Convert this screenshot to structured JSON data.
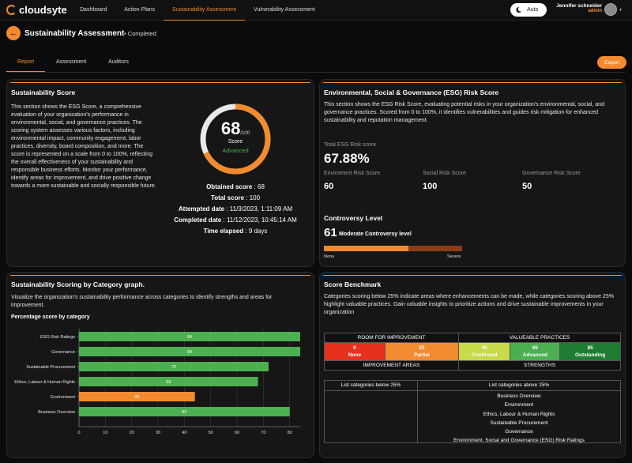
{
  "app": {
    "brand": "cloudsyte"
  },
  "nav": {
    "links": [
      "Dashboard",
      "Action Plans",
      "Sustainability Assessment",
      "Vulnerability Assessment"
    ],
    "active": 2
  },
  "toggle": {
    "label": "Auto"
  },
  "user": {
    "name": "Jennifer schneider",
    "role": "admin"
  },
  "page": {
    "title": "Sustainability Assessment",
    "status": "• Completed"
  },
  "tabs": [
    "Report",
    "Assessment",
    "Auditors"
  ],
  "export_label": "Export",
  "score_card": {
    "title": "Sustainability Score",
    "description": "This section shows the ESG Score, a comprehensive evaluation of your organization's performance in environmental, social, and governance practices. The scoring system assesses various factors, including environmental impact, community engagement, labor practices, diversity, board composition, and more. The score is represented on a scale from 0 to 100%, reflecting the overall effectiveness of your sustainability and responsible business efforts. Monitor your performance, identify areas for improvement, and drive positive change towards a more sustainable and socially responsible future.",
    "gauge": {
      "value": "68",
      "denominator": "/100",
      "label": "Score",
      "level": "Advanced",
      "fraction": 0.68
    },
    "details": [
      {
        "label": "Obtained score",
        "value": "68"
      },
      {
        "label": "Total score",
        "value": "100"
      },
      {
        "label": "Attempted date",
        "value": "11/3/2023, 1:11:09 AM"
      },
      {
        "label": "Completed date",
        "value": "11/12/2023, 10:45:14 AM"
      },
      {
        "label": "Time elapsed",
        "value": "9 days"
      }
    ]
  },
  "esg_card": {
    "title": "Environmental, Social & Governance (ESG) Risk Score",
    "description": "This section shows the ESG Risk Score, evaluating potential risks in your organization's environmental, social, and governance practices. Scored from 0 to 100%, it identifies vulnerabilities and guides risk mitigation for enhanced sustainability and reputation management.",
    "total_label": "Total ESG Risk score",
    "total_value": "67.88%",
    "risks": [
      {
        "label": "Enviroment Risk Score",
        "value": "60"
      },
      {
        "label": "Social Risk Score",
        "value": "100"
      },
      {
        "label": "Governance Risk Score",
        "value": "50"
      }
    ],
    "controversy": {
      "title": "Controversy Level",
      "value": "61",
      "text": "Moderate Controversy level",
      "fraction": 0.61,
      "min_label": "None",
      "max_label": "Severe"
    }
  },
  "category_card": {
    "title": "Sustainability Scoring by Category graph.",
    "description": "Visualize the organization's sustainability performance across categories to identify strengths and areas for improvement.",
    "chart_title": "Percentage score by category"
  },
  "chart_data": {
    "type": "bar",
    "orientation": "horizontal",
    "title": "Percentage score by category",
    "categories": [
      "ESG Risk Ratings",
      "Governance",
      "Sustainable Procurement",
      "Ethics, Labour & Human Rights",
      "Environment",
      "Business Overview"
    ],
    "values": [
      84,
      84,
      72,
      68,
      44,
      80
    ],
    "colors": [
      "#4caf50",
      "#4caf50",
      "#4caf50",
      "#4caf50",
      "#f28a30",
      "#4caf50"
    ],
    "xlim": [
      0,
      84
    ],
    "xticks": [
      0,
      10,
      20,
      30,
      40,
      50,
      60,
      70,
      80
    ],
    "grid": true
  },
  "benchmark_card": {
    "title": "Score Benchmark",
    "description": "Categories scoring below 25% indicate areas where enhancements can be made, while categories scoring above 25% highlight valuable practices. Gain valuable insights to prioritize actions and drive sustainable improvements in your organization",
    "room_label": "ROOM FOR IMPROVEMENT",
    "valuable_label": "VALUEABLE PRACTICES",
    "levels": [
      {
        "score": "0",
        "name": "None",
        "color": "#e8301f"
      },
      {
        "score": "25",
        "name": "Partial",
        "color": "#f28a30"
      },
      {
        "score": "45",
        "name": "Confirmed",
        "color": "#c8d94a"
      },
      {
        "score": "65",
        "name": "Advanced",
        "color": "#4caf50"
      },
      {
        "score": "85",
        "name": "Outstanding",
        "color": "#1e7d32"
      }
    ],
    "improvement_label": "IMPROVEMENT AREAS",
    "strengths_label": "STRENGTHS",
    "below_label": "List categories below 25%",
    "above_label": "List categories above 25%",
    "above_items": [
      "Business Overview",
      "Environment",
      "Ethics, Labour & Human Rights",
      "Sustainable Procurement",
      "Governance",
      "Environment, Social and Governance (ESG) Risk Ratings"
    ]
  }
}
